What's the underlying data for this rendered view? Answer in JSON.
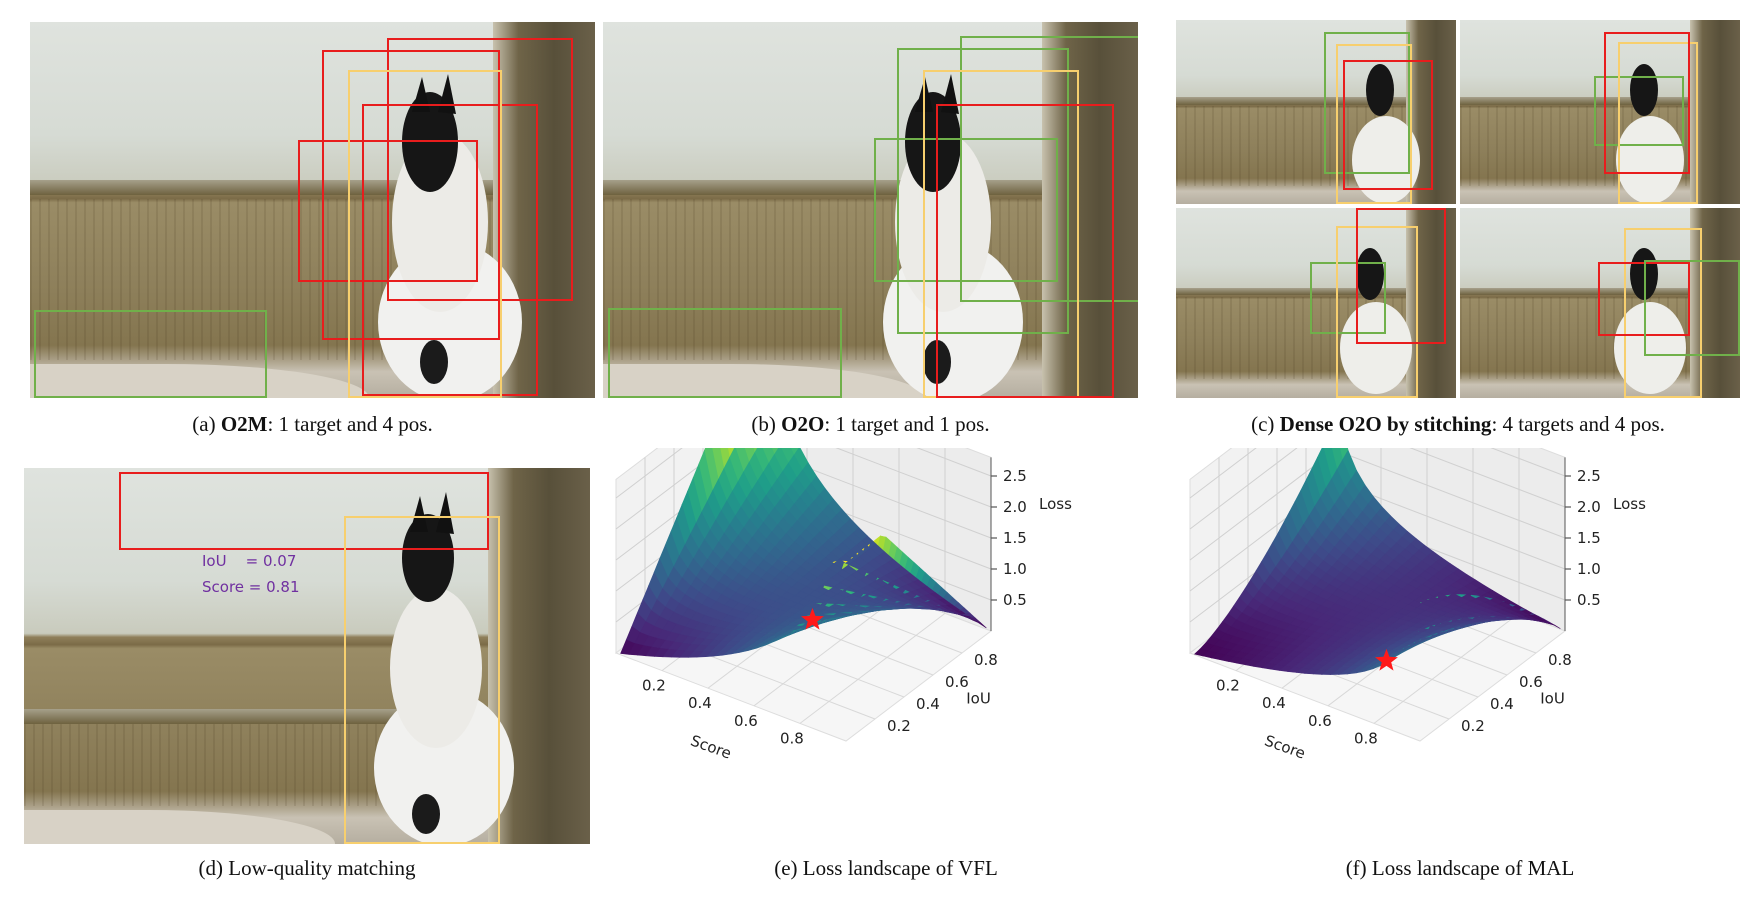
{
  "captions": {
    "a": {
      "prefix": "(a) ",
      "bold": "O2M",
      "rest": ": 1 target and 4 pos."
    },
    "b": {
      "prefix": "(b) ",
      "bold": "O2O",
      "rest": ": 1 target and 1 pos."
    },
    "c": {
      "prefix": "(c) ",
      "bold": "Dense O2O by stitching",
      "rest": ": 4 targets and 4 pos."
    },
    "d": {
      "text": "(d) Low-quality matching"
    },
    "e": {
      "text": "(e) Loss landscape of VFL"
    },
    "f": {
      "text": "(f) Loss landscape of MAL"
    }
  },
  "annotation_d": {
    "iou_line": "IoU    = 0.07",
    "score_line": "Score = 0.81"
  },
  "colors": {
    "prediction_box": "#e81d1d",
    "candidate_box": "#70b04a",
    "target_box": "#f7cf6e",
    "annotation_text": "#7030a0",
    "marker_star": "#ff1a1a"
  },
  "chart_data": [
    {
      "type": "surface3d",
      "title": "",
      "xlabel": "Score",
      "ylabel": "IoU",
      "zlabel": "Loss",
      "x_ticks": [
        "0.2",
        "0.4",
        "0.6",
        "0.8"
      ],
      "y_ticks": [
        "0.2",
        "0.4",
        "0.6",
        "0.8"
      ],
      "z_ticks": [
        "0.5",
        "1.0",
        "1.5",
        "2.0",
        "2.5"
      ],
      "xlim": [
        0,
        1
      ],
      "ylim": [
        0,
        1
      ],
      "zlim": [
        0,
        2.8
      ],
      "colormap": "viridis",
      "marker": {
        "shape": "star",
        "score": 0.81,
        "iou": 0.07,
        "loss": 0.1
      }
    },
    {
      "type": "surface3d",
      "title": "",
      "xlabel": "Score",
      "ylabel": "IoU",
      "zlabel": "Loss",
      "x_ticks": [
        "0.2",
        "0.4",
        "0.6",
        "0.8"
      ],
      "y_ticks": [
        "0.2",
        "0.4",
        "0.6",
        "0.8"
      ],
      "z_ticks": [
        "0.5",
        "1.0",
        "1.5",
        "2.0",
        "2.5"
      ],
      "xlim": [
        0,
        1
      ],
      "ylim": [
        0,
        1
      ],
      "zlim": [
        0,
        2.8
      ],
      "colormap": "viridis",
      "marker": {
        "shape": "star",
        "score": 0.81,
        "iou": 0.07,
        "loss": 1.0
      }
    }
  ]
}
